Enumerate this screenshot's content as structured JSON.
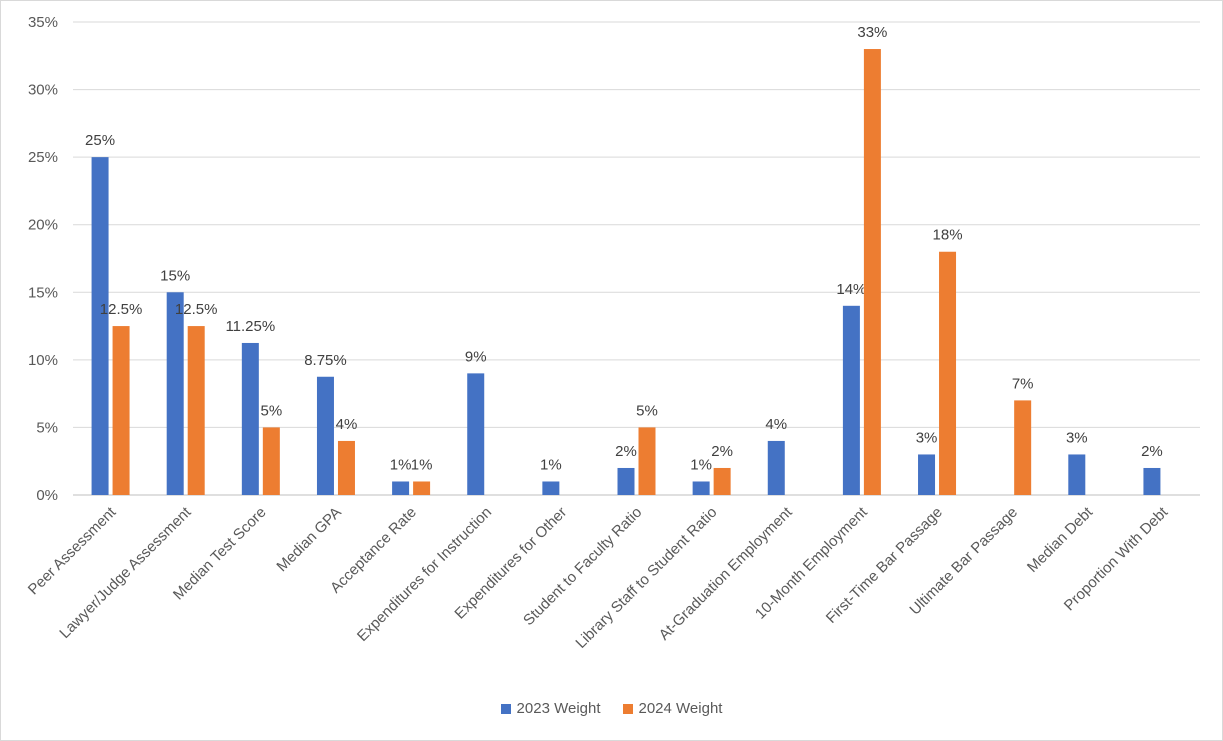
{
  "chart_data": {
    "type": "bar",
    "categories": [
      "Peer Assessment",
      "Lawyer/Judge Assessment",
      "Median Test Score",
      "Median GPA",
      "Acceptance Rate",
      "Expenditures for Instruction",
      "Expenditures for Other",
      "Student to Faculty Ratio",
      "Library Staff to Student Ratio",
      "At-Graduation Employment",
      "10-Month Employment",
      "First-Time Bar Passage",
      "Ultimate Bar Passage",
      "Median Debt",
      "Proportion With Debt"
    ],
    "series": [
      {
        "name": "2023 Weight",
        "color": "#4472c4",
        "values": [
          25,
          15,
          11.25,
          8.75,
          1,
          9,
          1,
          2,
          1,
          4,
          14,
          3,
          null,
          3,
          2
        ],
        "labels": [
          "25%",
          "15%",
          "11.25%",
          "8.75%",
          "1%",
          "9%",
          "1%",
          "2%",
          "1%",
          "4%",
          "14%",
          "3%",
          "",
          "3%",
          "2%"
        ]
      },
      {
        "name": "2024 Weight",
        "color": "#ed7d31",
        "values": [
          12.5,
          12.5,
          5,
          4,
          1,
          null,
          null,
          5,
          2,
          null,
          33,
          18,
          7,
          null,
          null
        ],
        "labels": [
          "12.5%",
          "12.5%",
          "5%",
          "4%",
          "1%",
          "",
          "",
          "5%",
          "2%",
          "",
          "33%",
          "18%",
          "7%",
          "",
          ""
        ]
      }
    ],
    "y_ticks": [
      "0%",
      "5%",
      "10%",
      "15%",
      "20%",
      "25%",
      "30%",
      "35%"
    ],
    "ylim": [
      0,
      35
    ],
    "y_step": 5,
    "grid": true,
    "legend_position": "bottom"
  }
}
